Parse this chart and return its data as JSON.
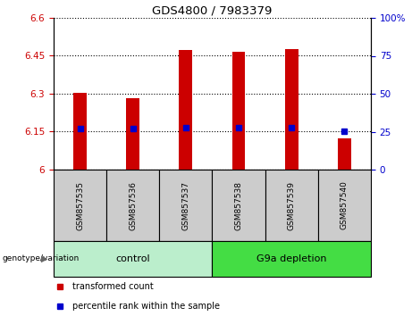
{
  "title": "GDS4800 / 7983379",
  "samples": [
    "GSM857535",
    "GSM857536",
    "GSM857537",
    "GSM857538",
    "GSM857539",
    "GSM857540"
  ],
  "bar_heights": [
    6.305,
    6.283,
    6.472,
    6.465,
    6.475,
    6.125
  ],
  "blue_marker_y": [
    6.163,
    6.162,
    6.167,
    6.167,
    6.167,
    6.152
  ],
  "blue_marker_right_pct": [
    25,
    25,
    27,
    27,
    27,
    23
  ],
  "ylim_left": [
    6.0,
    6.6
  ],
  "ylim_right": [
    0,
    100
  ],
  "yticks_left": [
    6.0,
    6.15,
    6.3,
    6.45,
    6.6
  ],
  "ytick_labels_left": [
    "6",
    "6.15",
    "6.3",
    "6.45",
    "6.6"
  ],
  "yticks_right_vals": [
    0,
    25,
    50,
    75,
    100
  ],
  "ytick_labels_right": [
    "0",
    "25",
    "50",
    "75",
    "100%"
  ],
  "bar_color": "#cc0000",
  "marker_color": "#0000cc",
  "bar_width": 0.25,
  "groups": [
    {
      "label": "control",
      "start": 0,
      "end": 3
    },
    {
      "label": "G9a depletion",
      "start": 3,
      "end": 6
    }
  ],
  "group_colors": [
    "#bbeecc",
    "#44dd44"
  ],
  "group_label_prefix": "genotype/variation",
  "legend_items": [
    {
      "label": "transformed count",
      "color": "#cc0000"
    },
    {
      "label": "percentile rank within the sample",
      "color": "#0000cc"
    }
  ],
  "background_color": "#ffffff",
  "sample_label_area_color": "#cccccc",
  "group_area_border_color": "#000000"
}
